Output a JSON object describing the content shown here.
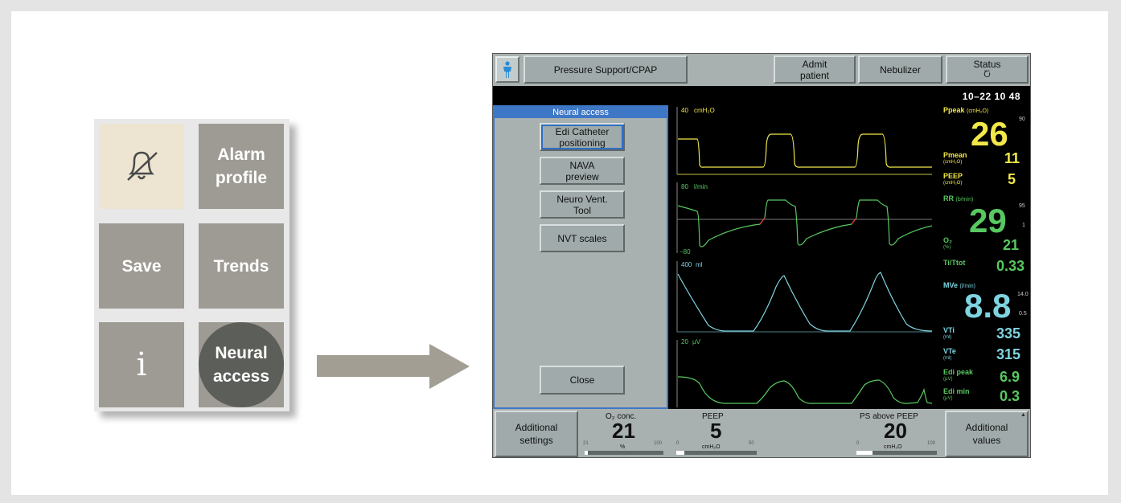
{
  "menu": {
    "alarm_profile": "Alarm\nprofile",
    "save": "Save",
    "trends": "Trends",
    "info": "i",
    "neural_access": "Neural\naccess",
    "icons": {
      "mute": "alarm-mute-icon"
    }
  },
  "vent": {
    "mode_button": "Pressure Support/CPAP",
    "admit_patient": "Admit\npatient",
    "nebulizer": "Nebulizer",
    "status": "Status",
    "status_icon": "Ⴀ",
    "datetime": "10–22  10 48",
    "dialog": {
      "title": "Neural access",
      "edi_catheter": "Edi Catheter\npositioning",
      "nava_preview": "NAVA\npreview",
      "neuro_vent_tool": "Neuro Vent.\nTool",
      "nvt_scales": "NVT scales",
      "close": "Close"
    },
    "waves": {
      "pressure_scale": "40",
      "pressure_unit": "cmH₂O",
      "flow_scale": "80",
      "flow_unit": "l/min",
      "flow_min": "−80",
      "volume_scale": "400",
      "volume_unit": "ml",
      "edi_scale": "20",
      "edi_unit": "µV"
    },
    "values": {
      "ppeak_label": "Ppeak",
      "ppeak_unit": "(cmH₂O)",
      "ppeak": "26",
      "ppeak_limit": "90",
      "pmean_label": "Pmean",
      "pmean_unit": "(cmH₂O)",
      "pmean": "11",
      "peep_label": "PEEP",
      "peep_unit": "(cmH₂O)",
      "peep": "5",
      "rr_label": "RR",
      "rr_unit": "(b/min)",
      "rr": "29",
      "rr_high": "95",
      "rr_low": "1",
      "o2_label": "O₂",
      "o2_unit": "(%)",
      "o2": "21",
      "ti_label": "Ti/Ttot",
      "ti": "0.33",
      "mve_label": "MVe",
      "mve_unit": "(l/min)",
      "mve": "8.8",
      "mve_high": "14.0",
      "mve_low": "0.5",
      "vti_label": "VTi",
      "vti_unit": "(ml)",
      "vti": "335",
      "vte_label": "VTe",
      "vte_unit": "(ml)",
      "vte": "315",
      "edi_peak_label": "Edi peak",
      "edi_peak_unit": "(µV)",
      "edi_peak": "6.9",
      "edi_min_label": "Edi min",
      "edi_min_unit": "(µV)",
      "edi_min": "0.3"
    },
    "bottom": {
      "additional_settings": "Additional\nsettings",
      "o2_label": "O₂ conc.",
      "o2_value": "21",
      "o2_unit": "%",
      "o2_min": "21",
      "o2_max": "100",
      "o2_level": 0,
      "peep_label": "PEEP",
      "peep_value": "5",
      "peep_unit": "cmH₂O",
      "peep_min": "0",
      "peep_max": "50",
      "peep_level": 0.1,
      "ps_label": "PS above PEEP",
      "ps_value": "20",
      "ps_unit": "cmH₂O",
      "ps_min": "0",
      "ps_max": "100",
      "ps_level": 0.2,
      "additional_values": "Additional\nvalues"
    },
    "colors": {
      "pressure": "#f2e84a",
      "flow": "#58c860",
      "volume": "#7ed4e0",
      "edi": "#58c860",
      "highlight": "#3e77c6"
    }
  }
}
